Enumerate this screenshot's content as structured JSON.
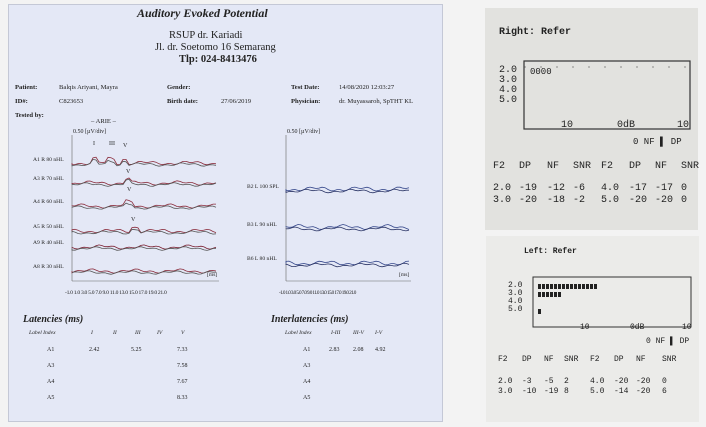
{
  "report": {
    "title": "Auditory Evoked Potential",
    "hospital": [
      "RSUP dr. Kariadi",
      "Jl. dr. Soetomo 16 Semarang",
      "Tlp: 024-8413476"
    ],
    "patient_label": "Patient:",
    "patient_value": "Balqis Ariyani, Mayra",
    "id_label": "ID#:",
    "id_value": "C823653",
    "tested_label": "Tested by:",
    "tested_value": "– ARIE –",
    "gender_label": "Gender:",
    "birth_label": "Birth date:",
    "birth_value": "27/06/2019",
    "testdate_label": "Test Date:",
    "testdate_value": "14/08/2020 12:03:27",
    "physician_label": "Physician:",
    "physician_value": "dr. Muyassaroh, SpTHT KL",
    "left_scale": "0.50 [µV/div]",
    "right_scale": "0.50 [µV/div]",
    "peak_labels": [
      "I",
      "III",
      "V"
    ],
    "peak_v": "V",
    "left_traces": [
      {
        "label": "A1 R 80 nHL",
        "color": "#8a2b3b"
      },
      {
        "label": "A3 R 70 nHL",
        "color": "#8a2b3b"
      },
      {
        "label": "A4 R 60 nHL",
        "color": "#8a2b3b"
      },
      {
        "label": "A5 R 50 nHL",
        "color": "#8a2b3b"
      },
      {
        "label": "A9 R 40 nHL",
        "color": "#7a1f30"
      },
      {
        "label": "A8 R 30 nHL",
        "color": "#8a2b3b"
      }
    ],
    "right_traces": [
      {
        "label": "B2 L 100 SPL",
        "color": "#34468a"
      },
      {
        "label": "B3 L 90 nHL",
        "color": "#34468a"
      },
      {
        "label": "B6 L 80 nHL",
        "color": "#34468a"
      }
    ],
    "ms_label": "[ms]",
    "left_axis_ticks": "-1.0 1.0 3.0 5.0 7.0 9.0 11.0 13.0 15.0 17.0 19.0 21.0",
    "right_axis_ticks": "-1.0 1.0 3.0 5.0 7.0 9.0 11.0 13.0 15.0 17.0 19.0 21.0",
    "latencies_title": "Latencies (ms)",
    "latency_headers": [
      "Label Index",
      "I",
      "II",
      "III",
      "IV",
      "V"
    ],
    "latency_rows": [
      [
        "A1",
        "2.42",
        "",
        "5.25",
        "",
        "7.33"
      ],
      [
        "A3",
        "",
        "",
        "",
        "",
        "7.58"
      ],
      [
        "A4",
        "",
        "",
        "",
        "",
        "7.67"
      ],
      [
        "A5",
        "",
        "",
        "",
        "",
        "8.33"
      ]
    ],
    "interlat_title": "Interlatencies (ms)",
    "interlat_headers": [
      "Label Index",
      "I-III",
      "III-V",
      "I-V"
    ],
    "interlat_rows": [
      [
        "A1",
        "2.83",
        "2.08",
        "4.92"
      ],
      [
        "A3",
        "",
        "",
        ""
      ],
      [
        "A4",
        "",
        "",
        ""
      ],
      [
        "A5",
        "",
        "",
        ""
      ]
    ]
  },
  "right_print": {
    "title": "Right: Refer",
    "levels": [
      "2.0",
      "3.0",
      "4.0",
      "5.0"
    ],
    "bars": "0000",
    "scale": [
      "10",
      "0dB",
      "10"
    ],
    "legend": "0 NF ▌ DP",
    "headers": [
      "F2",
      "DP",
      "NF",
      "SNR",
      "F2",
      "DP",
      "NF",
      "SNR"
    ],
    "rows": [
      [
        "2.0",
        "-19",
        "-12",
        "-6",
        "4.0",
        "-17",
        "-17",
        "0"
      ],
      [
        "3.0",
        "-20",
        "-18",
        "-2",
        "5.0",
        "-20",
        "-20",
        "0"
      ]
    ]
  },
  "left_print": {
    "title": "Left: Refer",
    "levels": [
      "2.0",
      "3.0",
      "4.0",
      "5.0"
    ],
    "scale": [
      "10",
      "0dB",
      "10"
    ],
    "legend": "0 NF ▌ DP",
    "headers": [
      "F2",
      "DP",
      "NF",
      "SNR",
      "F2",
      "DP",
      "NF",
      "SNR"
    ],
    "rows": [
      [
        "2.0",
        "-3",
        "-5",
        "2",
        "4.0",
        "-20",
        "-20",
        "0"
      ],
      [
        "3.0",
        "-10",
        "-19",
        "8",
        "5.0",
        "-14",
        "-20",
        "6"
      ]
    ]
  }
}
